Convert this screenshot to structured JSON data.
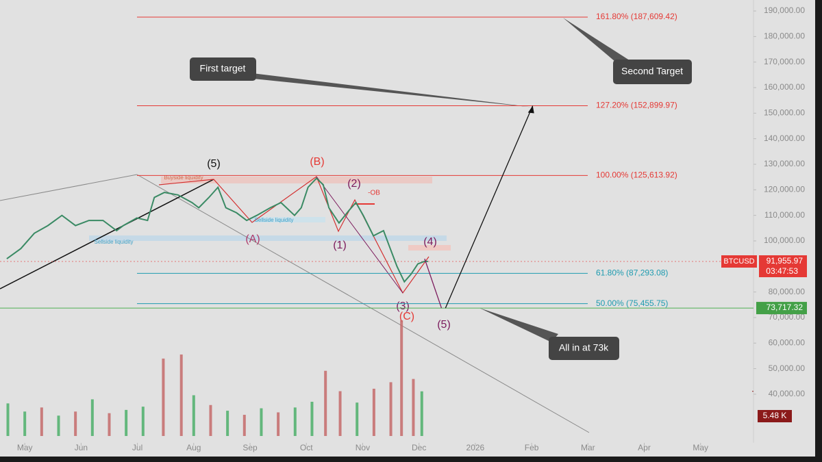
{
  "chart_data": {
    "type": "line",
    "xlim": [
      -0.44,
      12.94
    ],
    "xticks": [
      {
        "value": 0,
        "label": "May"
      },
      {
        "value": 1,
        "label": "Jun"
      },
      {
        "value": 2,
        "label": "Jul"
      },
      {
        "value": 3,
        "label": "Aug"
      },
      {
        "value": 4,
        "label": "Sep"
      },
      {
        "value": 5,
        "label": "Oct"
      },
      {
        "value": 6,
        "label": "Nov"
      },
      {
        "value": 7,
        "label": "Dec"
      },
      {
        "value": 8,
        "label": "2026"
      },
      {
        "value": 9,
        "label": "Feb"
      },
      {
        "value": 10,
        "label": "Mar"
      },
      {
        "value": 11,
        "label": "Apr"
      },
      {
        "value": 12,
        "label": "May"
      }
    ],
    "ylim": [
      15600,
      194300
    ],
    "yticks": [
      {
        "value": 40000,
        "label": "40,000.00"
      },
      {
        "value": 50000,
        "label": "50,000.00"
      },
      {
        "value": 60000,
        "label": "60,000.00"
      },
      {
        "value": 70000,
        "label": "70,000.00"
      },
      {
        "value": 80000,
        "label": "80,000.00"
      },
      {
        "value": 90000,
        "label": "90,000.00"
      },
      {
        "value": 100000,
        "label": "100,000.00"
      },
      {
        "value": 110000,
        "label": "110,000.00"
      },
      {
        "value": 120000,
        "label": "120,000.00"
      },
      {
        "value": 130000,
        "label": "130,000.00"
      },
      {
        "value": 140000,
        "label": "140,000.00"
      },
      {
        "value": 150000,
        "label": "150,000.00"
      },
      {
        "value": 160000,
        "label": "160,000.00"
      },
      {
        "value": 170000,
        "label": "170,000.00"
      },
      {
        "value": 180000,
        "label": "180,000.00"
      },
      {
        "value": 190000,
        "label": "190,000.00"
      }
    ],
    "y2lim": [
      0,
      53.5
    ],
    "series": [
      {
        "color": "#3a8a64",
        "x": [
          -0.32,
          -0.07,
          0.17,
          0.41,
          0.66,
          0.9,
          1.14,
          1.39,
          1.63,
          1.75,
          1.99,
          2.18,
          2.3,
          2.48,
          2.72,
          2.97,
          3.09,
          3.27,
          3.43,
          3.57,
          3.76,
          3.94,
          4.12,
          4.36,
          4.55,
          4.79,
          4.91,
          5.03,
          5.18,
          5.3,
          5.4,
          5.58,
          5.76,
          5.88,
          6.01,
          6.19,
          6.37,
          6.49,
          6.61,
          6.74,
          6.86,
          6.98,
          7.1,
          7.16
        ],
        "values": [
          93000,
          97000,
          103000,
          106000,
          110000,
          106000,
          108000,
          108000,
          104000,
          106000,
          109000,
          108000,
          117000,
          119000,
          118000,
          115000,
          113000,
          117000,
          121000,
          113000,
          111000,
          108000,
          110000,
          113000,
          115000,
          110000,
          113000,
          121000,
          124500,
          122000,
          113000,
          107000,
          112000,
          115000,
          110000,
          102000,
          104000,
          97000,
          90000,
          84000,
          87000,
          91000,
          92000,
          91955.97
        ]
      },
      {
        "color": "#7b1a5c",
        "x": [
          7.1,
          7.4
        ],
        "values": [
          93000,
          73717.32
        ]
      },
      {
        "color": "#111111",
        "x": [
          7.47,
          9.02
        ],
        "values": [
          73717.32,
          152899.97
        ]
      },
      {
        "color": "#3a9a5a",
        "axis": "y2",
        "x": [
          -0.3,
          0.0,
          0.3,
          0.6,
          0.9,
          1.2,
          1.5,
          1.8,
          2.1,
          2.46,
          2.78,
          3.0,
          3.3,
          3.6,
          3.9,
          4.2,
          4.5,
          4.8,
          5.1,
          5.34,
          5.6,
          5.9,
          6.2,
          6.5,
          6.69,
          6.9,
          7.05
        ],
        "values": [
          4,
          3,
          3.5,
          2.5,
          3,
          4.5,
          2.8,
          3.2,
          3.6,
          9.5,
          10,
          5,
          3.8,
          3.1,
          2.6,
          3.4,
          2.9,
          3.5,
          4.2,
          8,
          5.5,
          4.1,
          5.8,
          6.6,
          14.2,
          7,
          5.48
        ],
        "colors": [
          "#4caf6a",
          "#4caf6a",
          "#c46a6a",
          "#4caf6a",
          "#c46a6a",
          "#4caf6a",
          "#c46a6a",
          "#4caf6a",
          "#4caf6a",
          "#c46a6a",
          "#c46a6a",
          "#4caf6a",
          "#c46a6a",
          "#4caf6a",
          "#c46a6a",
          "#4caf6a",
          "#c46a6a",
          "#4caf6a",
          "#4caf6a",
          "#c46a6a",
          "#c46a6a",
          "#4caf6a",
          "#c46a6a",
          "#c46a6a",
          "#c46a6a",
          "#c46a6a",
          "#4caf6a"
        ]
      }
    ],
    "fib_levels": [
      {
        "value": 187609.42,
        "label": "161.80% (187,609.42)",
        "color": "#e53935"
      },
      {
        "value": 152899.97,
        "label": "127.20% (152,899.97)",
        "color": "#e53935"
      },
      {
        "value": 125613.92,
        "label": "100.00% (125,613.92)",
        "color": "#e53935"
      },
      {
        "value": 87293.08,
        "label": "61.80% (87,293.08)",
        "color": "#1e9bb0"
      },
      {
        "value": 75455.75,
        "label": "50.00% (75,455.75)",
        "color": "#1e9bb0"
      }
    ],
    "symbol": "BTCUSD",
    "last_price": {
      "value": 91955.97,
      "label": "91,955.97"
    },
    "countdown": "03:47:53",
    "target_price": {
      "value": 73717.32,
      "label": "73,717.32"
    },
    "volume_tag": "5.48 K",
    "annotations": [
      "First target",
      "Second Target",
      "All in at 73k"
    ],
    "wave_labels": [
      "(5)",
      "(B)",
      "(2)",
      "-OB",
      "(A)",
      "(1)",
      "(3)",
      "(C)",
      "(4)",
      "(5)"
    ],
    "zone_labels": [
      "Buyside liquidity",
      "Sellside liquidity",
      "Sellside liquidity"
    ]
  }
}
